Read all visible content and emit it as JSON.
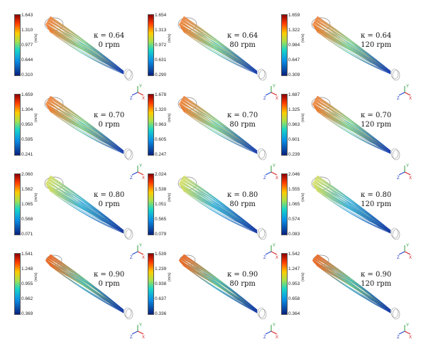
{
  "unit": "(m/s)",
  "axis_labels": {
    "x": "X",
    "y": "Y",
    "z": "Z"
  },
  "panels": [
    {
      "kappa": "κ = 0.64",
      "rpm": "0 rpm",
      "ticks": [
        "1.643",
        "1.310",
        "0.977",
        "0.644",
        "0.310"
      ],
      "tone": "hot"
    },
    {
      "kappa": "κ = 0.64",
      "rpm": "80 rpm",
      "ticks": [
        "1.654",
        "1.313",
        "0.972",
        "0.631",
        "0.290"
      ],
      "tone": "hot"
    },
    {
      "kappa": "κ = 0.64",
      "rpm": "120 rpm",
      "ticks": [
        "1.659",
        "1.322",
        "0.984",
        "0.647",
        "0.309"
      ],
      "tone": "hot"
    },
    {
      "kappa": "κ = 0.70",
      "rpm": "0 rpm",
      "ticks": [
        "1.659",
        "1.304",
        "0.950",
        "0.595",
        "0.241"
      ],
      "tone": "hot"
    },
    {
      "kappa": "κ = 0.70",
      "rpm": "80 rpm",
      "ticks": [
        "1.678",
        "1.320",
        "0.963",
        "0.605",
        "0.247"
      ],
      "tone": "hot"
    },
    {
      "kappa": "κ = 0.70",
      "rpm": "120 rpm",
      "ticks": [
        "1.687",
        "1.325",
        "0.963",
        "0.601",
        "0.239"
      ],
      "tone": "hot"
    },
    {
      "kappa": "κ = 0.80",
      "rpm": "0 rpm",
      "ticks": [
        "2.060",
        "1.562",
        "1.065",
        "0.568",
        "0.071"
      ],
      "tone": "warm"
    },
    {
      "kappa": "κ = 0.80",
      "rpm": "80 rpm",
      "ticks": [
        "2.024",
        "1.538",
        "1.051",
        "0.565",
        "0.079"
      ],
      "tone": "warm"
    },
    {
      "kappa": "κ = 0.80",
      "rpm": "120 rpm",
      "ticks": [
        "2.046",
        "1.555",
        "1.065",
        "0.574",
        "0.083"
      ],
      "tone": "warm"
    },
    {
      "kappa": "κ = 0.90",
      "rpm": "0 rpm",
      "ticks": [
        "1.541",
        "1.248",
        "0.955",
        "0.662",
        "0.369"
      ],
      "tone": "jet"
    },
    {
      "kappa": "κ = 0.90",
      "rpm": "80 rpm",
      "ticks": [
        "1.539",
        "1.239",
        "0.938",
        "0.637",
        "0.336"
      ],
      "tone": "jet"
    },
    {
      "kappa": "κ = 0.90",
      "rpm": "120 rpm",
      "ticks": [
        "1.542",
        "1.247",
        "0.953",
        "0.658",
        "0.364"
      ],
      "tone": "jet"
    }
  ]
}
